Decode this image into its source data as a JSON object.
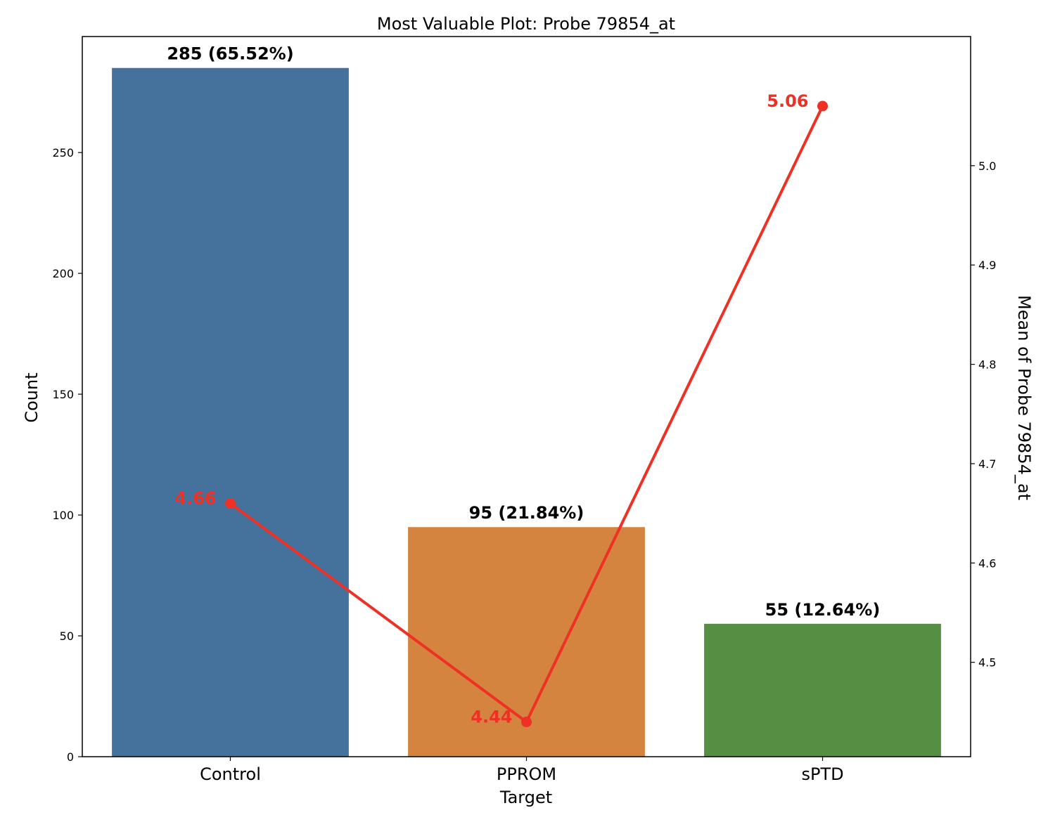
{
  "chart_data": {
    "type": "bar",
    "title": "Most Valuable Plot: Probe 79854_at",
    "xlabel": "Target",
    "ylabel": "Count",
    "y2label": "Mean of Probe 79854_at",
    "categories": [
      "Control",
      "PPROM",
      "sPTD"
    ],
    "values": [
      285,
      95,
      55
    ],
    "bar_labels": [
      "285 (65.52%)",
      "95 (21.84%)",
      "55 (12.64%)"
    ],
    "bar_colors": [
      "#44729d",
      "#d4843f",
      "#548f43"
    ],
    "ylim": [
      0,
      298
    ],
    "yticks": [
      0,
      50,
      100,
      150,
      200,
      250
    ],
    "grid": false,
    "line_series": {
      "values": [
        4.66,
        4.44,
        5.06
      ],
      "labels": [
        "4.66",
        "4.44",
        "5.06"
      ],
      "color": "#ee3124",
      "ylim": [
        4.405,
        5.13
      ],
      "yticks": [
        "4.5",
        "4.6",
        "4.7",
        "4.8",
        "4.9",
        "5.0"
      ]
    }
  }
}
